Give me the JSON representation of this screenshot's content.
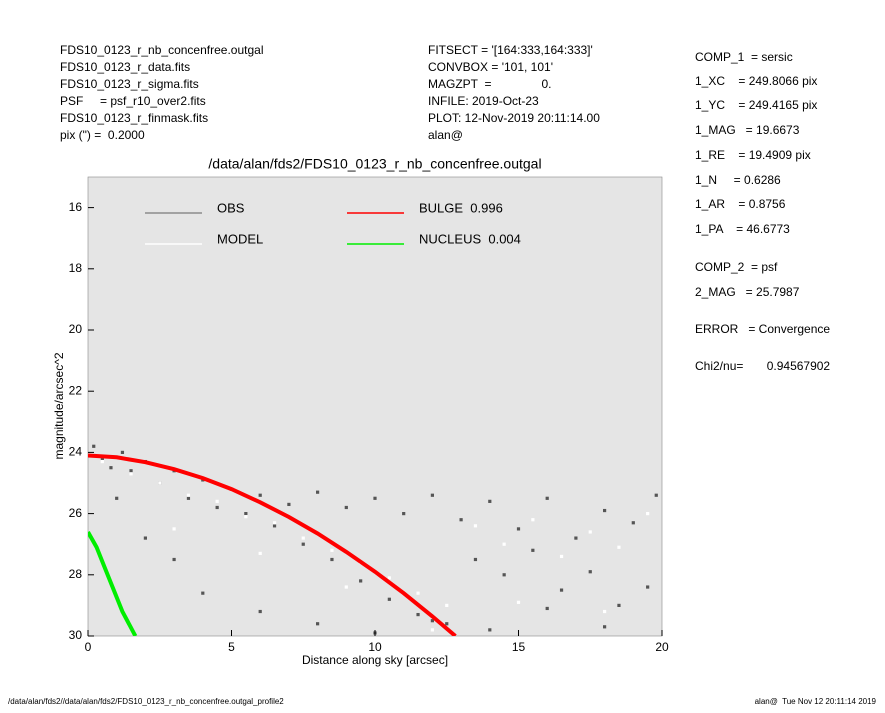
{
  "chart_data": {
    "type": "scatter",
    "title": "/data/alan/fds2/FDS10_0123_r_nb_concenfree.outgal",
    "header_left": [
      "FDS10_0123_r_nb_concenfree.outgal",
      "FDS10_0123_r_data.fits",
      "FDS10_0123_r_sigma.fits",
      "PSF     = psf_r10_over2.fits",
      "FDS10_0123_r_finmask.fits",
      "pix (\") =  0.2000"
    ],
    "header_mid": [
      "FITSECT = '[164:333,164:333]'",
      "CONVBOX = '101, 101'",
      "MAGZPT  =               0.",
      "INFILE: 2019-Oct-23",
      "PLOT: 12-Nov-2019 20:11:14.00",
      "alan@"
    ],
    "params": [
      "COMP_1  = sersic",
      "1_XC    = 249.8066 pix",
      "1_YC    = 249.4165 pix",
      "1_MAG   = 19.6673",
      "1_RE    = 19.4909 pix",
      "1_N     = 0.6286",
      "1_AR    = 0.8756",
      "1_PA    = 46.6773",
      "COMP_2  = psf",
      "2_MAG   = 25.7987",
      "ERROR   = Convergence",
      "Chi2/nu=       0.94567902"
    ],
    "footer_left": "/data/alan/fds2//data/alan/fds2/FDS10_0123_r_nb_concenfree.outgal_profile2",
    "footer_right": "alan@  Tue Nov 12 20:11:14 2019",
    "xlabel": "Distance along sky [arcsec]",
    "ylabel": "magnitude/arcsec^2",
    "xlim": [
      0,
      20
    ],
    "xticks": [
      0,
      5,
      10,
      15,
      20
    ],
    "ylim": [
      30,
      15
    ],
    "yticks": [
      16,
      18,
      20,
      22,
      24,
      26,
      28,
      30
    ],
    "series": [
      {
        "name": "OBS",
        "color": "#555555",
        "legend_color": "#8c8c8c",
        "style": "points",
        "x": [
          0.2,
          0.5,
          0.8,
          1.2,
          1.5,
          2,
          2.5,
          3,
          3.5,
          4,
          4.5,
          5,
          5.5,
          6,
          6.5,
          7,
          7.5,
          8,
          8.5,
          9,
          9.5,
          10,
          10.5,
          11,
          11.5,
          12,
          12.5,
          13,
          13.5,
          14,
          14.5,
          15,
          15.5,
          16,
          16.5,
          17,
          17.5,
          18,
          18.5,
          19,
          19.5,
          19.8,
          1,
          2,
          3,
          4,
          6,
          8,
          10,
          12,
          14,
          16,
          18
        ],
        "values": [
          23.8,
          24.2,
          24.5,
          24.0,
          24.6,
          24.3,
          25.0,
          24.6,
          25.5,
          24.9,
          25.8,
          25.2,
          26.0,
          25.4,
          26.4,
          25.7,
          27.0,
          25.3,
          27.5,
          25.8,
          28.2,
          25.5,
          28.8,
          26.0,
          29.3,
          25.4,
          29.6,
          26.2,
          27.5,
          25.6,
          28.0,
          26.5,
          27.2,
          25.5,
          28.5,
          26.8,
          27.9,
          25.9,
          29.0,
          26.3,
          28.4,
          25.4,
          25.5,
          26.8,
          27.5,
          28.6,
          29.2,
          29.6,
          29.9,
          29.5,
          29.8,
          29.1,
          29.7
        ]
      },
      {
        "name": "MODEL",
        "color": "#ffffff",
        "legend_color": "#ffffff",
        "style": "points",
        "x": [
          0.5,
          1.5,
          2.5,
          3.5,
          4.5,
          5.5,
          6.5,
          7.5,
          8.5,
          9.5,
          10.5,
          11.5,
          12.5,
          13.5,
          14.5,
          15.5,
          16.5,
          17.5,
          18.5,
          19.5,
          3,
          6,
          9,
          12,
          15,
          18
        ],
        "values": [
          24.3,
          24.7,
          25.0,
          25.4,
          25.6,
          26.1,
          26.3,
          26.8,
          27.2,
          27.6,
          28.1,
          28.6,
          29.0,
          26.4,
          27.0,
          26.2,
          27.4,
          26.6,
          27.1,
          26.0,
          26.5,
          27.3,
          28.4,
          29.8,
          28.9,
          29.2
        ]
      },
      {
        "name": "BULGE  0.996",
        "color": "#ff0000",
        "legend_color": "#ff0000",
        "style": "line",
        "x": [
          0,
          1,
          2,
          3,
          4,
          5,
          6,
          7,
          8,
          9,
          10,
          11,
          12,
          12.8
        ],
        "values": [
          24.1,
          24.16,
          24.32,
          24.55,
          24.84,
          25.2,
          25.63,
          26.11,
          26.65,
          27.25,
          27.9,
          28.6,
          29.36,
          30.0
        ]
      },
      {
        "name": "NUCLEUS  0.004",
        "color": "#00ee00",
        "legend_color": "#00ee00",
        "style": "line",
        "x": [
          0,
          0.3,
          0.6,
          0.9,
          1.2,
          1.65
        ],
        "values": [
          26.6,
          27.1,
          27.8,
          28.5,
          29.2,
          30.0
        ]
      }
    ]
  }
}
